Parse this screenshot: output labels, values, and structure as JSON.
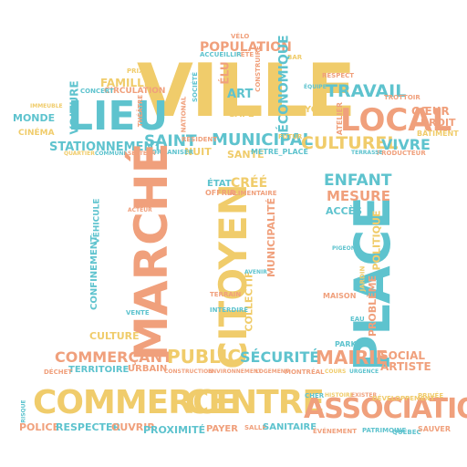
{
  "palette": {
    "yellow": "#f0cc6b",
    "teal": "#5ec3ce",
    "salmon": "#f0a07c"
  },
  "words": {
    "ville": "VILLE",
    "lieu": "LIEU",
    "local": "LOCAL",
    "travail": "TRAVAIL",
    "population": "POPULATION",
    "municipal": "MUNICIPAL",
    "saint": "SAINT",
    "stationnement": "STATIONNEMENT",
    "culturel": "CULTUREL",
    "vivre": "VIVRE",
    "famille": "FAMILLE",
    "circulation": "CIRCULATION",
    "economique": "ÉCONOMIQUE",
    "elu": "ÉLU",
    "art": "ART",
    "cafe": "CAFÉ",
    "monde": "MONDE",
    "cinema": "CINÉMA",
    "voiture": "VOITURE",
    "coeur": "CŒUR",
    "droit": "DROIT",
    "batiment": "BÂTIMENT",
    "lyon": "LYON",
    "nuit": "NUIT",
    "sante": "SANTÉ",
    "resident": "RÉSIDENT",
    "organiser": "ORGANISER",
    "producteur": "PRODUCTEUR",
    "trottoir": "TROTTOIR",
    "respect": "RESPECT",
    "concert": "CONCERT",
    "velo": "VÉLO",
    "fete": "FÊTE",
    "accueillir": "ACCUEILLIR",
    "prix": "PRIX",
    "quartier": "QUARTIER",
    "immeuble": "IMMEUBLE",
    "futur": "FUTUR",
    "metre_place": "METRE_PLACE",
    "terrasse": "TERRASSE",
    "bar": "BAR",
    "equipe": "ÉQUIPE",
    "construire": "CONSTRUIRE",
    "national": "NATIONAL",
    "theatre": "THÉÂTRE",
    "societe": "SOCIÉTÉ",
    "ecole": "ÉCOLE",
    "commune": "COMMUNE",
    "secteur": "SECTEUR",
    "atelier": "ATELIER",
    "marche": "MARCHÉ",
    "citoyen": "CITOYEN",
    "place": "PLACE",
    "enfant": "ENFANT",
    "mesure": "MESURE",
    "acces": "ACCÈS",
    "politique": "POLITIQUE",
    "etat": "ÉTAT",
    "cree": "CRÉÉ",
    "offrir": "OFFRIR",
    "alimentaire": "ALIMENTAIRE",
    "municipalite": "MUNICIPALITÉ",
    "collectif": "COLLECTIF",
    "vehicule": "VÉHICULE",
    "confinement": "CONFINEMENT",
    "culture": "CULTURE",
    "commercant": "COMMERÇANT",
    "public": "PUBLIC",
    "securite": "SÉCURITÉ",
    "mairie": "MAIRIE",
    "social": "SOCIAL",
    "artiste": "ARTISTE",
    "territoire": "TERRITOIRE",
    "urbain": "URBAIN",
    "dechet": "DÉCHET",
    "construction": "CONSTRUCTION",
    "environnement": "ENVIRONNEMENT",
    "logement": "LOGEMENT",
    "montreal": "MONTRÉAL",
    "cours": "COURS",
    "urgence": "URGENCE",
    "parking": "PARKING",
    "probleme": "PROBLÈME",
    "maison": "MAISON",
    "jardin": "JARDIN",
    "commerce": "COMMERCE",
    "centre": "CENTRE",
    "association": "ASSOCIATION",
    "police": "POLICE",
    "respecter": "RESPECTER",
    "ouvrir": "OUVRIR",
    "proximite": "PROXIMITÉ",
    "payer": "PAYER",
    "salle": "SALLE",
    "sanitaire": "SANITAIRE",
    "evenement": "ÉVÉNEMENT",
    "patrimoine": "PATRIMOINE",
    "quebec": "QUÉBEC",
    "sauver": "SAUVER",
    "cher": "CHER",
    "histoire": "HISTOIRE",
    "exister": "EXISTER",
    "developpement": "DÉVELOPPEMENT",
    "privee": "PRIVÉE",
    "risque": "RISQUE",
    "interdire": "INTERDIRE",
    "terrain": "TERRAIN",
    "acteur": "ACTEUR",
    "aider": "AIDER",
    "service": "SERVICE",
    "avenir": "AVENIR",
    "vente": "VENTE",
    "pigeon": "PIGEON",
    "eau": "EAU",
    "scene": "SCÈNE"
  }
}
